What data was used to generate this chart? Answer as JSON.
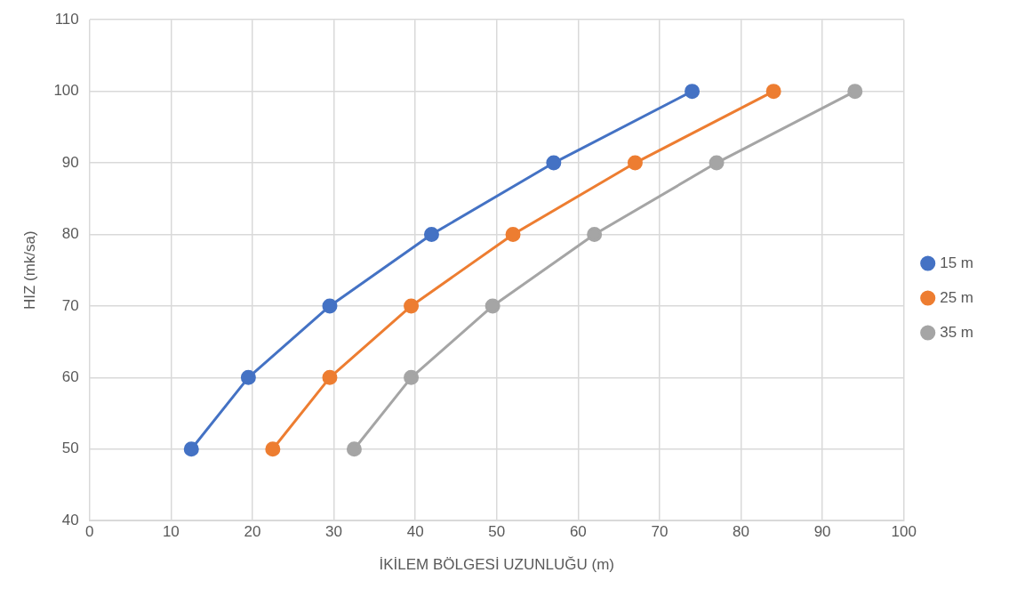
{
  "chart_data": {
    "type": "line",
    "xlabel": "İKİLEM BÖLGESİ UZUNLUĞU (m)",
    "ylabel": "HIZ (mk/sa)",
    "xlim": [
      0,
      100
    ],
    "xticks": [
      0,
      10,
      20,
      30,
      40,
      50,
      60,
      70,
      80,
      90,
      100
    ],
    "ylim": [
      40,
      110
    ],
    "yticks": [
      40,
      50,
      60,
      70,
      80,
      90,
      100,
      110
    ],
    "grid": true,
    "legend": "right",
    "marker": "circle",
    "line_style": "solid",
    "series": [
      {
        "name": "15 m",
        "color": "#4472c4",
        "x": [
          12.5,
          19.5,
          29.5,
          42,
          57,
          74
        ],
        "values": [
          50,
          60,
          70,
          80,
          90,
          100
        ]
      },
      {
        "name": "25 m",
        "color": "#ed7d31",
        "x": [
          22.5,
          29.5,
          39.5,
          52,
          67,
          84
        ],
        "values": [
          50,
          60,
          70,
          80,
          90,
          100
        ]
      },
      {
        "name": "35 m",
        "color": "#a5a5a5",
        "x": [
          32.5,
          39.5,
          49.5,
          62,
          77,
          94
        ],
        "values": [
          50,
          60,
          70,
          80,
          90,
          100
        ]
      }
    ]
  }
}
